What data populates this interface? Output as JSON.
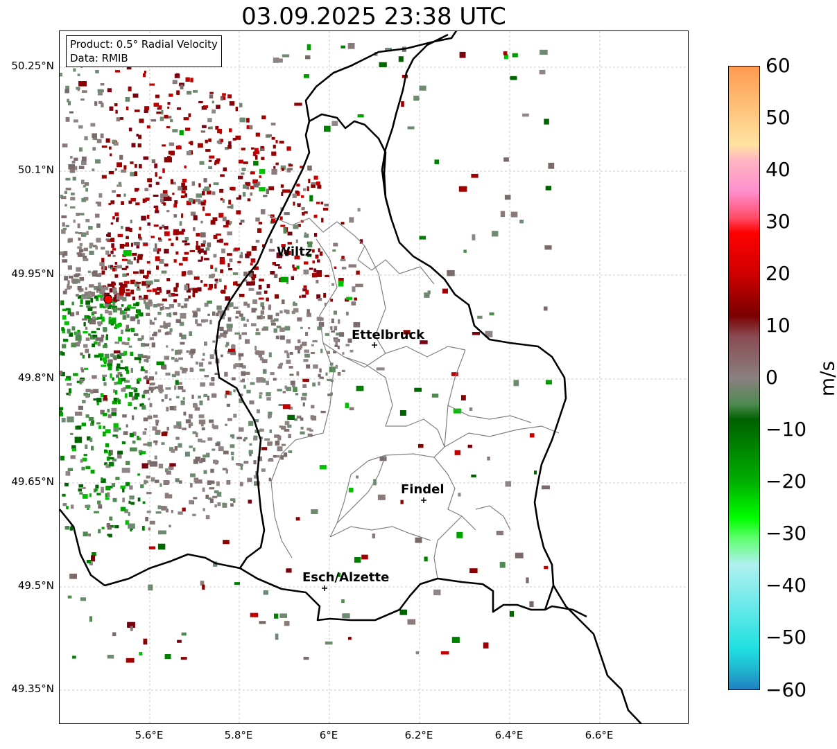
{
  "title": "03.09.2025 23:38 UTC",
  "info_box": {
    "product": "Product: 0.5° Radial Velocity",
    "data": "Data: RMIB"
  },
  "y_ticks": [
    "50.25°N",
    "50.1°N",
    "49.95°N",
    "49.8°N",
    "49.65°N",
    "49.5°N",
    "49.35°N"
  ],
  "x_ticks": [
    "5.6°E",
    "5.8°E",
    "6°E",
    "6.2°E",
    "6.4°E",
    "6.6°E"
  ],
  "places": [
    {
      "name": "Wiltz"
    },
    {
      "name": "Ettelbruck"
    },
    {
      "name": "Findel"
    },
    {
      "name": "Esch/Alzette"
    }
  ],
  "radar_site_color": "#ff0000",
  "colorbar": {
    "label": "m/s",
    "ticks": [
      "60",
      "50",
      "40",
      "30",
      "20",
      "10",
      "0",
      "−10",
      "−20",
      "−30",
      "−40",
      "−50",
      "−60"
    ],
    "range": [
      -60,
      60
    ]
  }
}
